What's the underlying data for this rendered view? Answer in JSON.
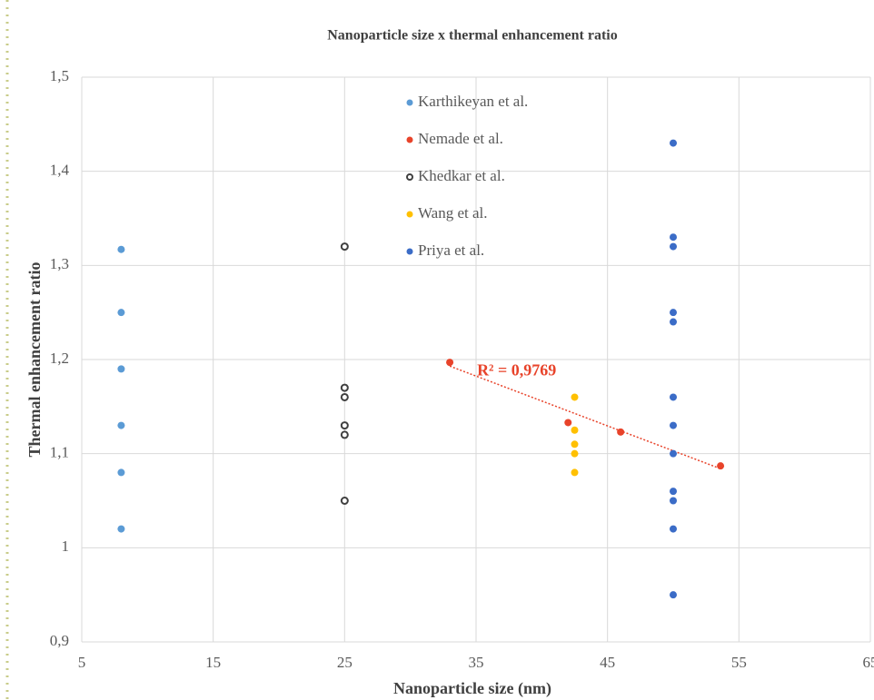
{
  "chart_data": {
    "type": "scatter",
    "title": "Nanoparticle size x thermal enhancement ratio",
    "xlabel": "Nanoparticle size (nm)",
    "ylabel": "Thermal enhancement ratio",
    "xlim": [
      5,
      65
    ],
    "xticks": [
      5,
      15,
      25,
      35,
      45,
      55,
      65
    ],
    "ylim": [
      0.9,
      1.5
    ],
    "yticks": [
      {
        "value": 0.9,
        "label": "0,9"
      },
      1,
      {
        "value": 1.1,
        "label": "1,1"
      },
      {
        "value": 1.2,
        "label": "1,2"
      },
      {
        "value": 1.3,
        "label": "1,3"
      },
      {
        "value": 1.4,
        "label": "1,4"
      },
      {
        "value": 1.5,
        "label": "1,5"
      }
    ],
    "grid": true,
    "series": [
      {
        "name": "Karthikeyan et al.",
        "color": "#5b9bd5",
        "x": [
          8,
          8,
          8,
          8,
          8,
          8
        ],
        "values": [
          1.317,
          1.25,
          1.19,
          1.13,
          1.08,
          1.02
        ]
      },
      {
        "name": "Nemade et al.",
        "color": "#e8432a",
        "x": [
          33,
          42,
          46,
          53.6
        ],
        "values": [
          1.197,
          1.133,
          1.123,
          1.087
        ],
        "trendline": {
          "x": [
            33,
            53.6
          ],
          "y": [
            1.193,
            1.084
          ],
          "label": "R² = 0,9769"
        }
      },
      {
        "name": "Khedkar et al.",
        "color": "#404040",
        "marker_style": "hollow",
        "x": [
          25,
          25,
          25,
          25,
          25,
          25
        ],
        "values": [
          1.32,
          1.17,
          1.16,
          1.13,
          1.12,
          1.05
        ]
      },
      {
        "name": "Wang et al.",
        "color": "#ffc000",
        "x": [
          42.5,
          42.5,
          42.5,
          42.5,
          42.5
        ],
        "values": [
          1.16,
          1.125,
          1.11,
          1.1,
          1.08
        ]
      },
      {
        "name": "Priya et al.",
        "color": "#3b6cc7",
        "x": [
          50,
          50,
          50,
          50,
          50,
          50,
          50,
          50,
          50,
          50,
          50,
          50
        ],
        "values": [
          1.43,
          1.33,
          1.32,
          1.25,
          1.24,
          1.16,
          1.13,
          1.1,
          1.06,
          1.05,
          1.02,
          0.95
        ]
      }
    ]
  }
}
